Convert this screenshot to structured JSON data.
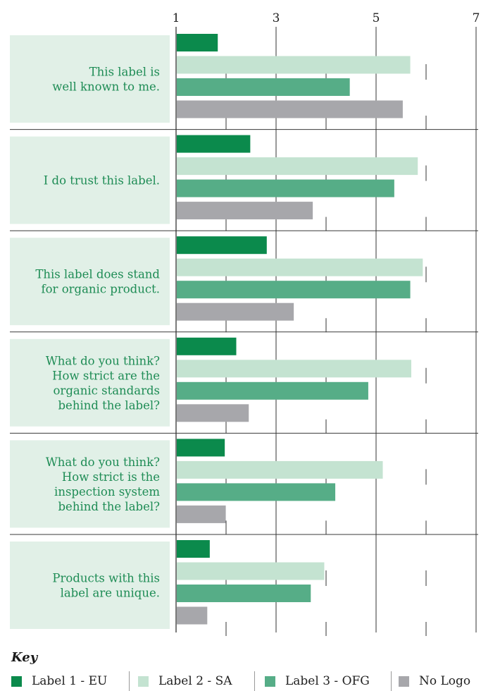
{
  "chart_data": {
    "type": "bar",
    "orientation": "horizontal",
    "xlim": [
      1,
      7
    ],
    "ticks": [
      1,
      3,
      5,
      7
    ],
    "categories": [
      [
        "This label is",
        "well known to me."
      ],
      [
        "I do trust this label."
      ],
      [
        "This label does stand",
        "for organic product."
      ],
      [
        "What do you think?",
        "How strict are the",
        "organic standards",
        "behind the label?"
      ],
      [
        "What do you think?",
        "How strict is the",
        "inspection system",
        "behind the label?"
      ],
      [
        "Products with this",
        "label are unique."
      ]
    ],
    "series": [
      {
        "name": "Label 1 - EU",
        "color": "#0b8a4c",
        "values": [
          1.82,
          2.47,
          2.8,
          2.19,
          1.96,
          1.66
        ]
      },
      {
        "name": "Label 2 - SA",
        "color": "#c4e3d1",
        "values": [
          5.67,
          5.82,
          5.92,
          5.69,
          5.12,
          3.95
        ]
      },
      {
        "name": "Label 3 - OFG",
        "color": "#56ad87",
        "values": [
          4.46,
          5.35,
          5.67,
          4.83,
          4.17,
          3.68
        ]
      },
      {
        "name": "No Logo",
        "color": "#a7a7ab",
        "values": [
          5.52,
          3.72,
          3.34,
          2.44,
          1.98,
          1.61
        ]
      }
    ],
    "grid": true,
    "legend_title": "Key",
    "legend_position": "bottom"
  }
}
